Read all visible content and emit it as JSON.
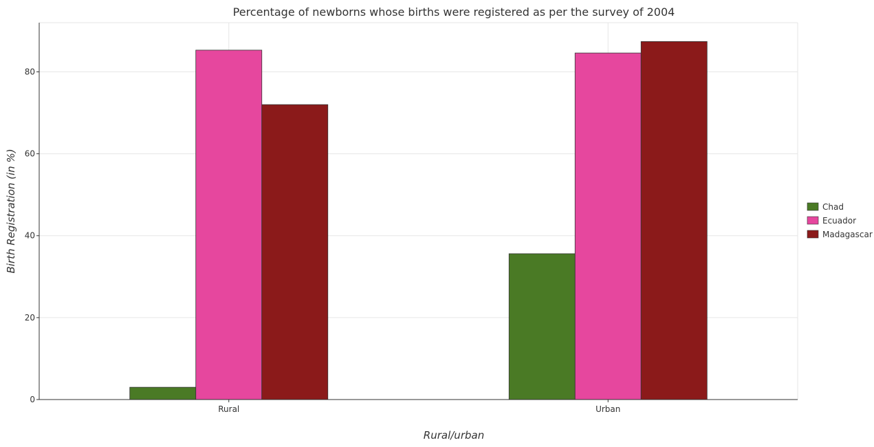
{
  "chart_data": {
    "type": "bar",
    "title": "Percentage of newborns whose births were registered as per the survey of 2004",
    "xlabel": "Rural/urban",
    "ylabel": "Birth Registration (in %)",
    "categories": [
      "Rural",
      "Urban"
    ],
    "series": [
      {
        "name": "Chad",
        "color": "#4a7a25",
        "values": [
          3.0,
          35.6
        ]
      },
      {
        "name": "Ecuador",
        "color": "#e6479e",
        "values": [
          85.3,
          84.6
        ]
      },
      {
        "name": "Madagascar",
        "color": "#8b1a1a",
        "values": [
          72.0,
          87.4
        ]
      }
    ],
    "ylim": [
      0,
      92
    ],
    "yticks": [
      0,
      20,
      40,
      60,
      80
    ],
    "grid": true,
    "legend_position": "right"
  }
}
